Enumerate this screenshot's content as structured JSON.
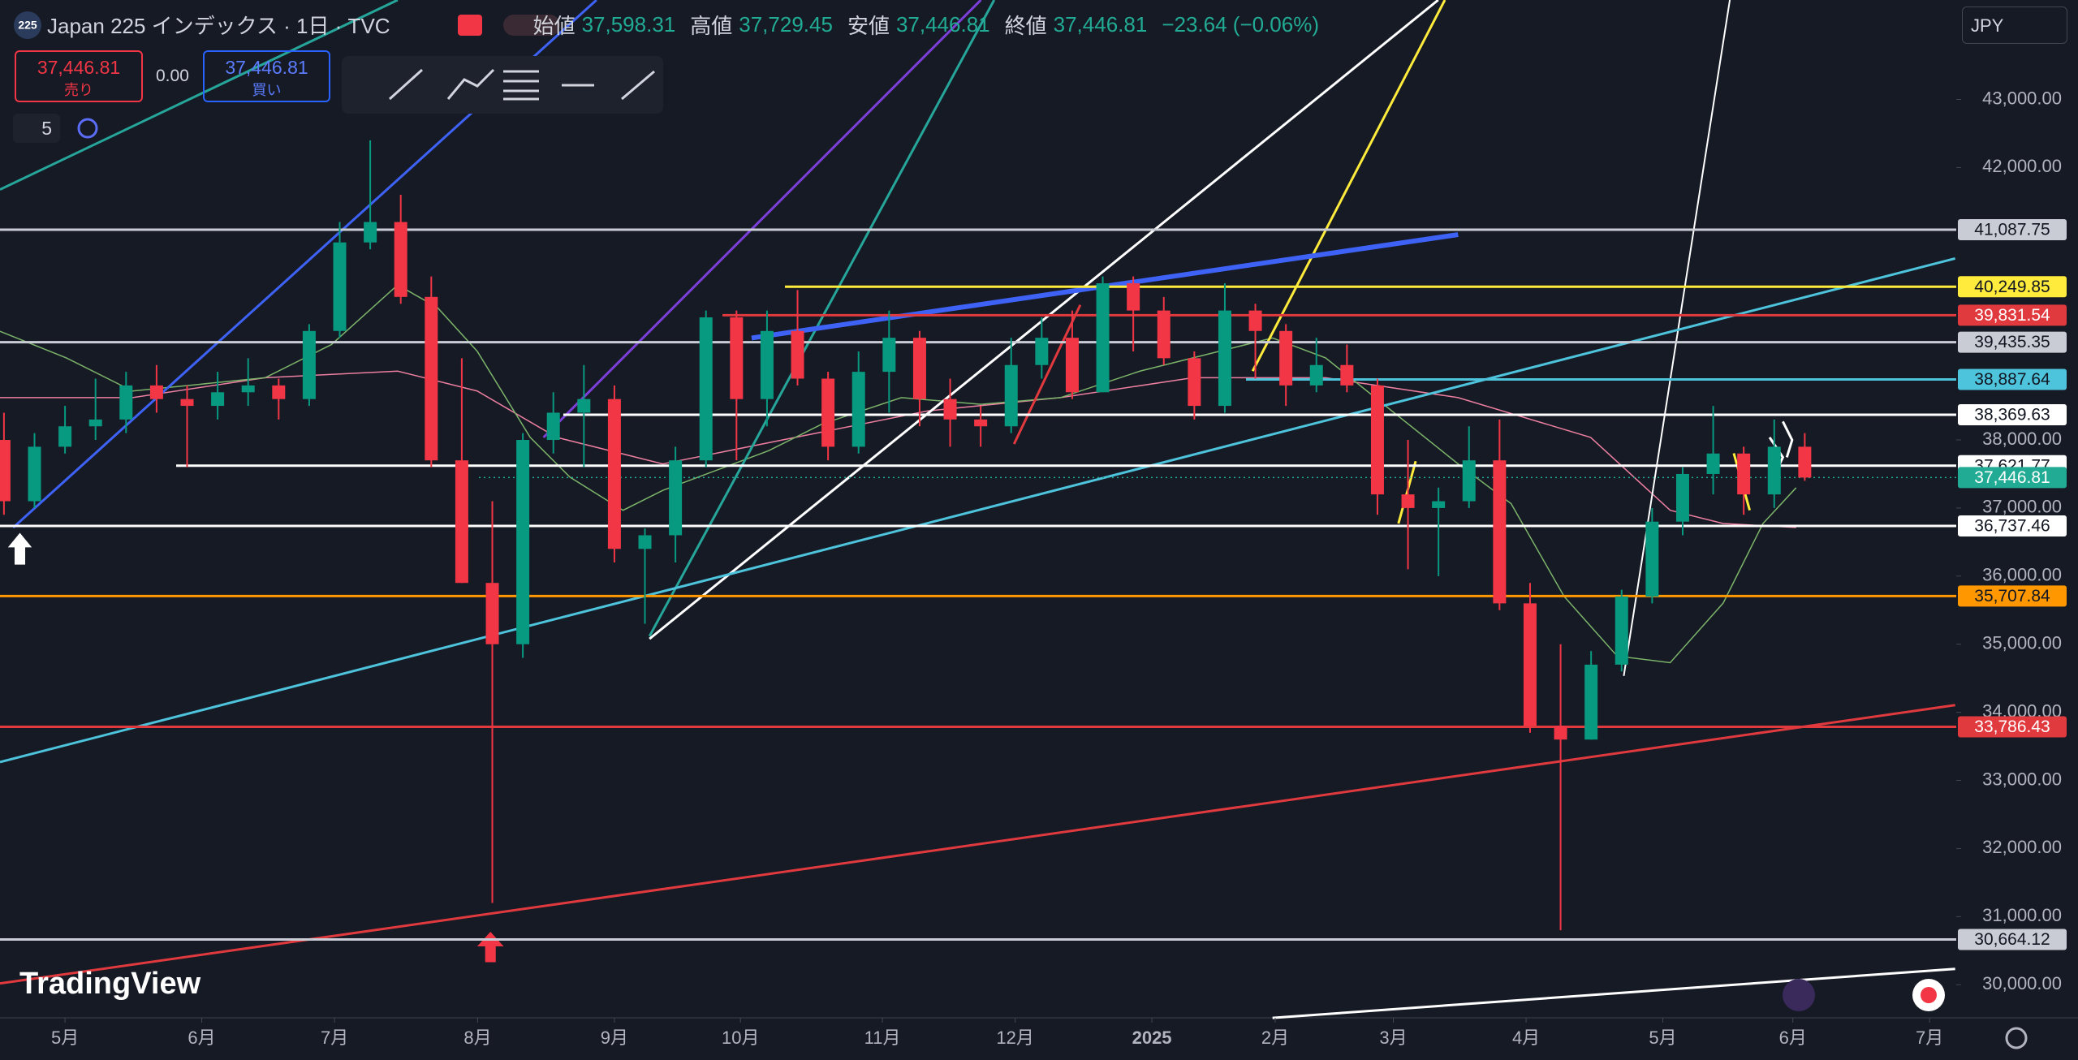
{
  "header": {
    "badge": "225",
    "title": "Japan 225 インデックス · 1日 · TVC",
    "ohlc": [
      {
        "label": "始値",
        "value": "37,598.31"
      },
      {
        "label": "高値",
        "value": "37,729.45"
      },
      {
        "label": "安値",
        "value": "37,446.81"
      },
      {
        "label": "終値",
        "value": "37,446.81"
      }
    ],
    "change": "−23.64 (−0.06%)"
  },
  "trade": {
    "sell_price": "37,446.81",
    "sell_label": "売り",
    "spread": "0.00",
    "buy_price": "37,446.81",
    "buy_label": "買い"
  },
  "indicator_count": "5",
  "currency": "JPY",
  "logo": "TradingView",
  "chart_data": {
    "type": "candlestick",
    "up_color": "#089981",
    "down_color": "#f23645",
    "categories": [
      null,
      null,
      null,
      null,
      null,
      null,
      null,
      null,
      null,
      null,
      null,
      null,
      null,
      null,
      null,
      null,
      null,
      null,
      null,
      null,
      null,
      null,
      null,
      null,
      null,
      null,
      null,
      null,
      null,
      null,
      null,
      null,
      null,
      null,
      null,
      null,
      null,
      null,
      null,
      null,
      null,
      null,
      null,
      null,
      null,
      null,
      null,
      null,
      null,
      null,
      null,
      null,
      null,
      null,
      null,
      null,
      null,
      null,
      null,
      null
    ],
    "open": [
      38000,
      37100,
      37900,
      38200,
      38300,
      38800,
      38600,
      38500,
      38700,
      38800,
      38600,
      39600,
      40900,
      41200,
      40100,
      37700,
      35900,
      35000,
      38000,
      38400,
      38600,
      36400,
      36600,
      37700,
      39800,
      38600,
      39600,
      38900,
      37900,
      39000,
      39500,
      38600,
      38300,
      38200,
      39100,
      39500,
      38700,
      40300,
      39900,
      39200,
      38500,
      39900,
      39600,
      38800,
      39100,
      38800,
      37200,
      37000,
      37100,
      37700,
      35600,
      33800,
      33600,
      34700,
      35700,
      36800,
      37500,
      37800,
      37200,
      37900
    ],
    "high": [
      38400,
      38100,
      38500,
      38900,
      39000,
      39100,
      38800,
      39000,
      39200,
      38900,
      39700,
      41200,
      42400,
      41600,
      40400,
      39200,
      37100,
      38100,
      38700,
      39100,
      38800,
      36700,
      37900,
      39900,
      39900,
      39900,
      40200,
      39000,
      39300,
      39900,
      39600,
      38900,
      38500,
      39500,
      39800,
      39900,
      40400,
      40400,
      40100,
      39300,
      40300,
      40000,
      39700,
      39500,
      39400,
      38900,
      38000,
      37300,
      38200,
      38300,
      35900,
      35000,
      34900,
      35800,
      37000,
      37600,
      38500,
      37900,
      38300,
      38100
    ],
    "low": [
      36900,
      37000,
      37800,
      38000,
      38100,
      38400,
      37600,
      38300,
      38500,
      38300,
      38500,
      39500,
      40800,
      40000,
      37600,
      35900,
      31200,
      34800,
      37800,
      37600,
      36200,
      35300,
      36200,
      37600,
      37700,
      38200,
      38800,
      37700,
      37800,
      38400,
      38200,
      37900,
      37900,
      38100,
      38900,
      38600,
      38700,
      39300,
      39100,
      38300,
      38400,
      38900,
      38500,
      38700,
      38700,
      36900,
      36100,
      36000,
      37000,
      35500,
      33700,
      30800,
      33600,
      34600,
      35600,
      36600,
      37200,
      36900,
      37000,
      37400
    ],
    "close": [
      37100,
      37900,
      38200,
      38300,
      38800,
      38600,
      38500,
      38700,
      38800,
      38600,
      39600,
      40900,
      41200,
      40100,
      37700,
      35900,
      35000,
      38000,
      38400,
      38600,
      36400,
      36600,
      37700,
      39800,
      38600,
      39600,
      38900,
      37900,
      39000,
      39500,
      38600,
      38300,
      38200,
      39100,
      39500,
      38700,
      40300,
      39900,
      39200,
      38500,
      39900,
      39600,
      38800,
      39100,
      38800,
      37200,
      37000,
      37100,
      37700,
      35600,
      33800,
      33600,
      34700,
      35700,
      36800,
      37500,
      37800,
      37200,
      37900,
      37446.81
    ],
    "xlim": [
      -0.13,
      63.91
    ],
    "xticks": [
      {
        "value": 2.0,
        "label": "5月"
      },
      {
        "value": 6.48,
        "label": "6月"
      },
      {
        "value": 10.83,
        "label": "7月"
      },
      {
        "value": 15.52,
        "label": "8月"
      },
      {
        "value": 20.0,
        "label": "9月"
      },
      {
        "value": 24.13,
        "label": "10月"
      },
      {
        "value": 28.78,
        "label": "11月"
      },
      {
        "value": 33.13,
        "label": "12月"
      },
      {
        "value": 37.61,
        "label": "2025"
      },
      {
        "value": 41.65,
        "label": "2月"
      },
      {
        "value": 45.52,
        "label": "3月"
      },
      {
        "value": 49.87,
        "label": "4月"
      },
      {
        "value": 54.35,
        "label": "5月"
      },
      {
        "value": 58.61,
        "label": "6月"
      },
      {
        "value": 63.09,
        "label": "7月"
      }
    ],
    "ylim": [
      29550,
      44460
    ],
    "yticks": [
      {
        "value": 30000,
        "label": "30,000.00"
      },
      {
        "value": 31000,
        "label": "31,000.00"
      },
      {
        "value": 32000,
        "label": "32,000.00"
      },
      {
        "value": 33000,
        "label": "33,000.00"
      },
      {
        "value": 34000,
        "label": "34,000.00"
      },
      {
        "value": 35000,
        "label": "35,000.00"
      },
      {
        "value": 36000,
        "label": "36,000.00"
      },
      {
        "value": 37000,
        "label": "37,000.00"
      },
      {
        "value": 38000,
        "label": "38,000.00"
      },
      {
        "value": 42000,
        "label": "42,000.00"
      },
      {
        "value": 43000,
        "label": "43,000.00"
      }
    ],
    "levels": [
      {
        "value": 41087.75,
        "label": "41,087.75",
        "color": "#c9ccd4",
        "text_color": "#131722"
      },
      {
        "value": 40249.85,
        "label": "40,249.85",
        "color": "#ffeb3b",
        "text_color": "#131722"
      },
      {
        "value": 39831.54,
        "label": "39,831.54",
        "color": "#e0393e",
        "text_color": "#ffffff"
      },
      {
        "value": 39435.35,
        "label": "39,435.35",
        "color": "#c9ccd4",
        "text_color": "#131722"
      },
      {
        "value": 38887.64,
        "label": "38,887.64",
        "color": "#4dc3dc",
        "text_color": "#131722"
      },
      {
        "value": 38369.63,
        "label": "38,369.63",
        "color": "#ffffff",
        "text_color": "#131722"
      },
      {
        "value": 37621.77,
        "label": "37,621.77",
        "color": "#ffffff",
        "text_color": "#131722"
      },
      {
        "value": 37446.81,
        "label": "37,446.81",
        "color": "#22ab94",
        "text_color": "#ffffff"
      },
      {
        "value": 36737.46,
        "label": "36,737.46",
        "color": "#ffffff",
        "text_color": "#131722"
      },
      {
        "value": 35707.84,
        "label": "35,707.84",
        "color": "#ff9800",
        "text_color": "#131722"
      },
      {
        "value": 33786.43,
        "label": "33,786.43",
        "color": "#e0393e",
        "text_color": "#ffffff"
      },
      {
        "value": 30664.12,
        "label": "30,664.12",
        "color": "#c9ccd4",
        "text_color": "#131722"
      }
    ]
  }
}
